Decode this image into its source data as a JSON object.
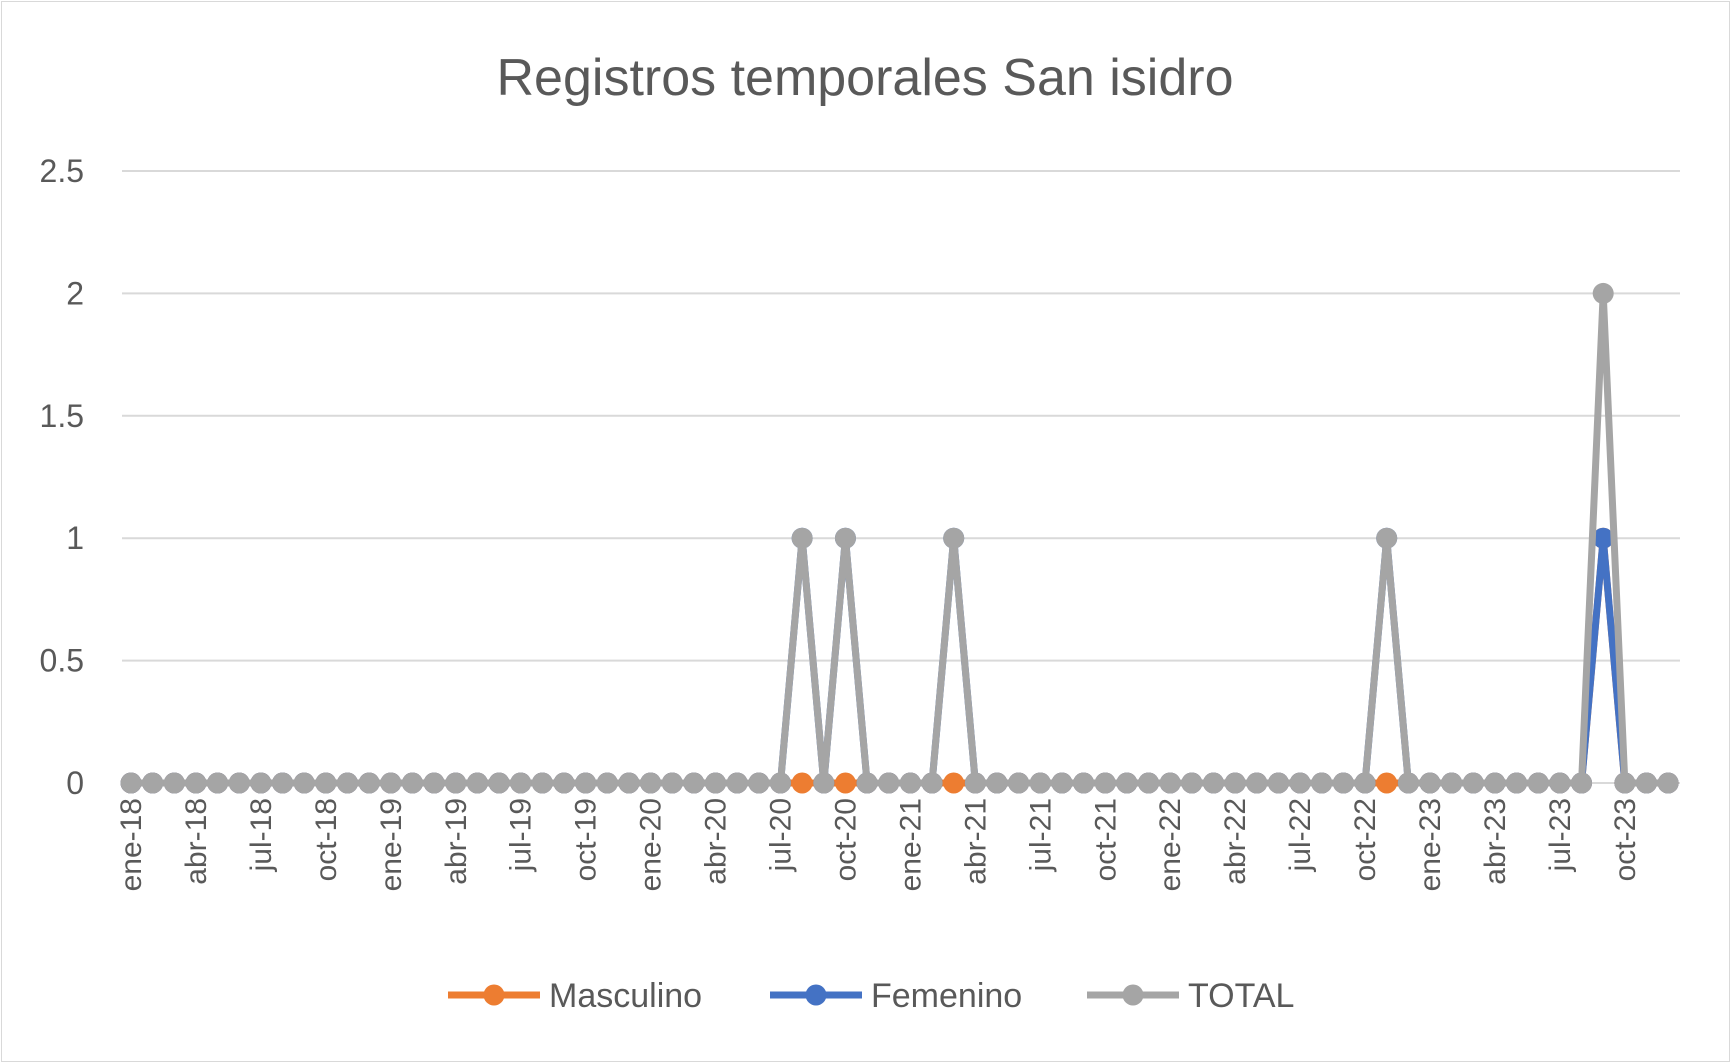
{
  "chart_data": {
    "type": "line",
    "title": "Registros temporales San isidro",
    "xlabel": "",
    "ylabel": "",
    "ylim": [
      0,
      2.5
    ],
    "yticks": [
      "0",
      "0.5",
      "1",
      "1.5",
      "2",
      "2.5"
    ],
    "grid": true,
    "legend_position": "bottom",
    "x": [
      "ene-18",
      "feb-18",
      "mar-18",
      "abr-18",
      "may-18",
      "jun-18",
      "jul-18",
      "ago-18",
      "sep-18",
      "oct-18",
      "nov-18",
      "dic-18",
      "ene-19",
      "feb-19",
      "mar-19",
      "abr-19",
      "may-19",
      "jun-19",
      "jul-19",
      "ago-19",
      "sep-19",
      "oct-19",
      "nov-19",
      "dic-19",
      "ene-20",
      "feb-20",
      "mar-20",
      "abr-20",
      "may-20",
      "jun-20",
      "jul-20",
      "ago-20",
      "sep-20",
      "oct-20",
      "nov-20",
      "dic-20",
      "ene-21",
      "feb-21",
      "mar-21",
      "abr-21",
      "may-21",
      "jun-21",
      "jul-21",
      "ago-21",
      "sep-21",
      "oct-21",
      "nov-21",
      "dic-21",
      "ene-22",
      "feb-22",
      "mar-22",
      "abr-22",
      "may-22",
      "jun-22",
      "jul-22",
      "ago-22",
      "sep-22",
      "oct-22",
      "nov-22",
      "dic-22",
      "ene-23",
      "feb-23",
      "mar-23",
      "abr-23",
      "may-23",
      "jun-23",
      "jul-23",
      "ago-23",
      "sep-23",
      "oct-23",
      "nov-23",
      "dic-23"
    ],
    "x_tick_labels": [
      "ene-18",
      "abr-18",
      "jul-18",
      "oct-18",
      "ene-19",
      "abr-19",
      "jul-19",
      "oct-19",
      "ene-20",
      "abr-20",
      "jul-20",
      "oct-20",
      "ene-21",
      "abr-21",
      "jul-21",
      "oct-21",
      "ene-22",
      "abr-22",
      "jul-22",
      "oct-22",
      "ene-23",
      "abr-23",
      "jul-23",
      "oct-23"
    ],
    "series": [
      {
        "name": "Masculino",
        "color": "#ed7d31",
        "values": [
          0,
          0,
          0,
          0,
          0,
          0,
          0,
          0,
          0,
          0,
          0,
          0,
          0,
          0,
          0,
          0,
          0,
          0,
          0,
          0,
          0,
          0,
          0,
          0,
          0,
          0,
          0,
          0,
          0,
          0,
          0,
          0,
          0,
          0,
          0,
          0,
          0,
          0,
          0,
          0,
          0,
          0,
          0,
          0,
          0,
          0,
          0,
          0,
          0,
          0,
          0,
          0,
          0,
          0,
          0,
          0,
          0,
          0,
          0,
          0,
          0,
          0,
          0,
          0,
          0,
          0,
          0,
          0,
          1,
          0,
          0,
          0
        ]
      },
      {
        "name": "Femenino",
        "color": "#4472c4",
        "values": [
          0,
          0,
          0,
          0,
          0,
          0,
          0,
          0,
          0,
          0,
          0,
          0,
          0,
          0,
          0,
          0,
          0,
          0,
          0,
          0,
          0,
          0,
          0,
          0,
          0,
          0,
          0,
          0,
          0,
          0,
          0,
          1,
          0,
          1,
          0,
          0,
          0,
          0,
          1,
          0,
          0,
          0,
          0,
          0,
          0,
          0,
          0,
          0,
          0,
          0,
          0,
          0,
          0,
          0,
          0,
          0,
          0,
          0,
          1,
          0,
          0,
          0,
          0,
          0,
          0,
          0,
          0,
          0,
          1,
          0,
          0,
          0
        ]
      },
      {
        "name": "TOTAL",
        "color": "#a5a5a5",
        "values": [
          0,
          0,
          0,
          0,
          0,
          0,
          0,
          0,
          0,
          0,
          0,
          0,
          0,
          0,
          0,
          0,
          0,
          0,
          0,
          0,
          0,
          0,
          0,
          0,
          0,
          0,
          0,
          0,
          0,
          0,
          0,
          1,
          0,
          1,
          0,
          0,
          0,
          0,
          1,
          0,
          0,
          0,
          0,
          0,
          0,
          0,
          0,
          0,
          0,
          0,
          0,
          0,
          0,
          0,
          0,
          0,
          0,
          0,
          1,
          0,
          0,
          0,
          0,
          0,
          0,
          0,
          0,
          0,
          2,
          0,
          0,
          0
        ]
      }
    ]
  }
}
